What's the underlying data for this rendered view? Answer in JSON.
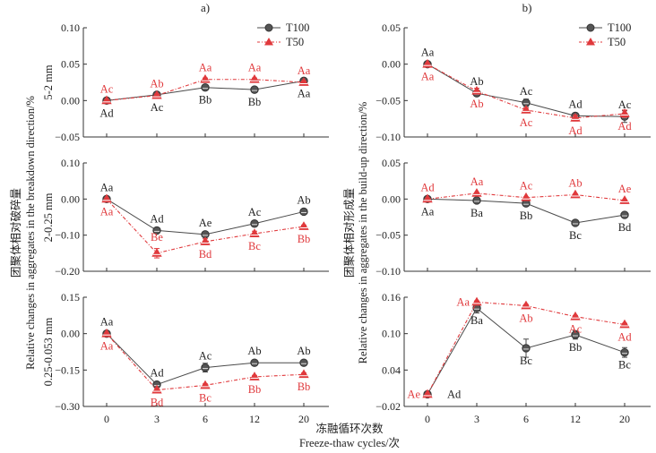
{
  "colors": {
    "t100": "#4a4a4a",
    "t50": "#e0393c",
    "axis": "#333333",
    "text": "#222222"
  },
  "x_axis": {
    "title_cn": "冻融循环次数",
    "title_en": "Freeze-thaw cycles/次"
  },
  "legend": {
    "t100": "T100",
    "t50": "T50"
  },
  "chart_data": [
    {
      "type": "line",
      "panel_label": "a)",
      "title": "a) 5-2 mm",
      "ylabel": "5-2 mm",
      "group_ylabel_cn": "团聚体相对破碎量",
      "group_ylabel_en": "Relative changes in aggregates in the breakdown direction/%",
      "categories": [
        "0",
        "3",
        "6",
        "12",
        "20"
      ],
      "ylim": [
        -0.05,
        0.1
      ],
      "yticks": [
        0.1,
        0.05,
        0.0,
        -0.05
      ],
      "ytick_labels": [
        "0.10",
        "0.05",
        "0.00",
        "−0.05"
      ],
      "legend": "top-right",
      "series": [
        {
          "name": "T100",
          "values": [
            0.0,
            0.008,
            0.018,
            0.015,
            0.027
          ],
          "errors": [
            0,
            0.002,
            0.002,
            0.002,
            0.002
          ],
          "labels": [
            "Ad",
            "Ac",
            "Bb",
            "Bb",
            "Aa"
          ],
          "label_pos": [
            "below",
            "below",
            "below",
            "below",
            "below"
          ]
        },
        {
          "name": "T50",
          "values": [
            0.0,
            0.007,
            0.029,
            0.029,
            0.025
          ],
          "errors": [
            0,
            0.002,
            0.002,
            0.002,
            0.002
          ],
          "labels": [
            "Ac",
            "Ab",
            "Aa",
            "Aa",
            "Aa"
          ],
          "label_pos": [
            "above",
            "above",
            "above",
            "above",
            "above"
          ]
        }
      ]
    },
    {
      "type": "line",
      "title": "2-0.25 mm",
      "ylabel": "2-0.25 mm",
      "categories": [
        "0",
        "3",
        "6",
        "12",
        "20"
      ],
      "ylim": [
        -0.2,
        0.1
      ],
      "yticks": [
        0.1,
        0.0,
        -0.1,
        -0.2
      ],
      "ytick_labels": [
        "0.10",
        "0.00",
        "−0.10",
        "−0.20"
      ],
      "series": [
        {
          "name": "T100",
          "values": [
            0.0,
            -0.087,
            -0.098,
            -0.068,
            -0.035
          ],
          "errors": [
            0,
            0.003,
            0.003,
            0.003,
            0.003
          ],
          "labels": [
            "Aa",
            "Ad",
            "Ae",
            "Ac",
            "Ab"
          ],
          "label_pos": [
            "above",
            "above",
            "above",
            "above",
            "above"
          ]
        },
        {
          "name": "T50",
          "values": [
            0.0,
            -0.15,
            -0.118,
            -0.096,
            -0.076
          ],
          "errors": [
            0,
            0.013,
            0.008,
            0.007,
            0.004
          ],
          "labels": [
            "Aa",
            "Be",
            "Bd",
            "Bc",
            "Bb"
          ],
          "label_pos": [
            "below",
            "above-below",
            "below",
            "below",
            "below"
          ]
        }
      ]
    },
    {
      "type": "line",
      "title": "0.25-0.053 mm",
      "ylabel": "0.25-0.053 mm",
      "categories": [
        "0",
        "3",
        "6",
        "12",
        "20"
      ],
      "ylim": [
        -0.3,
        0.15
      ],
      "yticks": [
        0.15,
        0.0,
        -0.15,
        -0.3
      ],
      "ytick_labels": [
        "0.15",
        "0.00",
        "−0.15",
        "−0.30"
      ],
      "series": [
        {
          "name": "T100",
          "values": [
            0.0,
            -0.21,
            -0.14,
            -0.12,
            -0.12
          ],
          "errors": [
            0,
            0.006,
            0.018,
            0.005,
            0.005
          ],
          "labels": [
            "Aa",
            "Ad",
            "Ac",
            "Ab",
            "Ab"
          ],
          "label_pos": [
            "above",
            "above",
            "above",
            "above",
            "above"
          ]
        },
        {
          "name": "T50",
          "values": [
            0.0,
            -0.232,
            -0.213,
            -0.178,
            -0.168
          ],
          "errors": [
            0,
            0.008,
            0.006,
            0.006,
            0.006
          ],
          "labels": [
            "Aa",
            "Bd",
            "Bc",
            "Bb",
            "Bb"
          ],
          "label_pos": [
            "below",
            "below",
            "below",
            "below",
            "below"
          ]
        }
      ]
    },
    {
      "type": "line",
      "panel_label": "b)",
      "title": "b) 5-2 mm",
      "group_ylabel_cn": "团聚体相对形成量",
      "group_ylabel_en": "Relative changes in aggregates in the build-up direction/%",
      "categories": [
        "0",
        "3",
        "6",
        "12",
        "20"
      ],
      "ylim": [
        -0.1,
        0.05
      ],
      "yticks": [
        0.05,
        0.0,
        -0.05,
        -0.1
      ],
      "ytick_labels": [
        "0.05",
        "0.00",
        "−0.05",
        "−0.10"
      ],
      "legend": "top-right",
      "series": [
        {
          "name": "T100",
          "values": [
            0.0,
            -0.04,
            -0.053,
            -0.071,
            -0.072
          ],
          "errors": [
            0,
            0.004,
            0.005,
            0.004,
            0.008
          ],
          "labels": [
            "Aa",
            "Ab",
            "Ac",
            "Ad",
            "Ac"
          ],
          "label_pos": [
            "above",
            "above",
            "above",
            "above",
            "above"
          ]
        },
        {
          "name": "T50",
          "values": [
            0.0,
            -0.037,
            -0.063,
            -0.074,
            -0.068
          ],
          "errors": [
            0,
            0.004,
            0.003,
            0.004,
            0.005
          ],
          "labels": [
            "Aa",
            "Ab",
            "Ac",
            "Ad",
            "Ad"
          ],
          "label_pos": [
            "below",
            "below",
            "below",
            "below",
            "below"
          ]
        }
      ]
    },
    {
      "type": "line",
      "title": "2-0.25 mm",
      "categories": [
        "0",
        "3",
        "6",
        "12",
        "20"
      ],
      "ylim": [
        -0.1,
        0.05
      ],
      "yticks": [
        0.05,
        0.0,
        -0.05,
        -0.1
      ],
      "ytick_labels": [
        "0.05",
        "0.00",
        "−0.05",
        "−0.10"
      ],
      "series": [
        {
          "name": "T100",
          "values": [
            0.0,
            -0.002,
            -0.006,
            -0.033,
            -0.022
          ],
          "errors": [
            0,
            0.001,
            0.001,
            0.001,
            0.001
          ],
          "labels": [
            "Aa",
            "Ba",
            "Bb",
            "Bc",
            "Bd"
          ],
          "label_pos": [
            "below",
            "below",
            "below",
            "below",
            "below"
          ]
        },
        {
          "name": "T50",
          "values": [
            0.0,
            0.008,
            0.002,
            0.006,
            -0.002
          ],
          "errors": [
            0,
            0.001,
            0.001,
            0.001,
            0.001
          ],
          "labels": [
            "Ad",
            "Aa",
            "Ac",
            "Ab",
            "Ae"
          ],
          "label_pos": [
            "above",
            "above",
            "above",
            "above",
            "above"
          ]
        }
      ]
    },
    {
      "type": "line",
      "title": "0.25-0.053 mm",
      "categories": [
        "0",
        "3",
        "6",
        "12",
        "20"
      ],
      "ylim": [
        -0.02,
        0.16
      ],
      "yticks": [
        0.16,
        0.1,
        0.04,
        -0.02
      ],
      "ytick_labels": [
        "0.16",
        "0.10",
        "0.04",
        "−0.02"
      ],
      "series": [
        {
          "name": "T100",
          "values": [
            0.0,
            0.142,
            0.076,
            0.098,
            0.069
          ],
          "errors": [
            0,
            0.008,
            0.015,
            0.007,
            0.008
          ],
          "labels": [
            "Ad",
            "Ba",
            "Bc",
            "Bb",
            "Bc"
          ],
          "label_pos": [
            "right",
            "below",
            "below",
            "below",
            "below"
          ]
        },
        {
          "name": "T50",
          "values": [
            0.0,
            0.152,
            0.146,
            0.128,
            0.115
          ],
          "errors": [
            0,
            0.002,
            0.002,
            0.002,
            0.002
          ],
          "labels": [
            "Ae",
            "Aa",
            "Ab",
            "Ac",
            "Ad"
          ],
          "label_pos": [
            "left",
            "left",
            "below",
            "below",
            "below"
          ]
        }
      ]
    }
  ]
}
